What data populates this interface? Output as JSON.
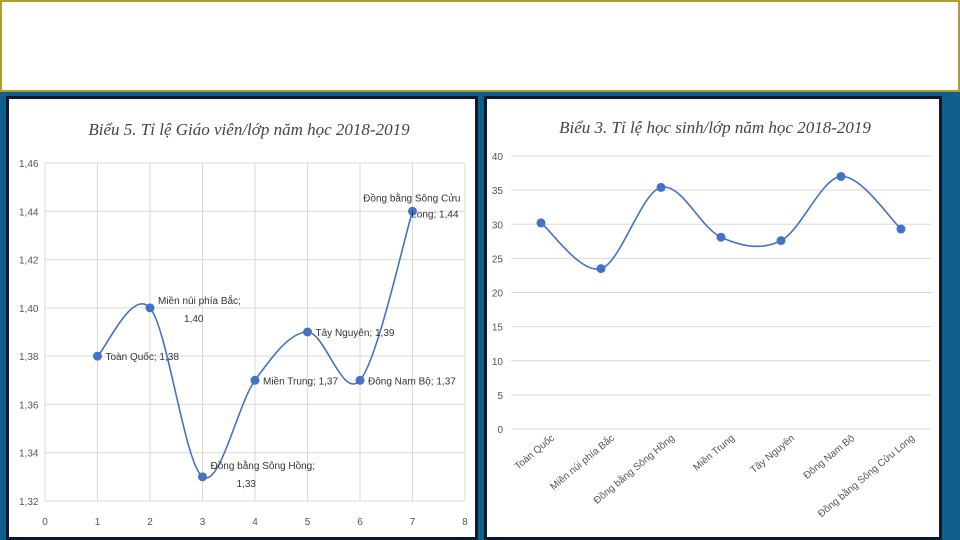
{
  "colors": {
    "accent": "#4472c4",
    "background": "#0f5f8c",
    "header_border": "#b59a2e"
  },
  "header": {
    "title": ""
  },
  "chart_data": [
    {
      "type": "line",
      "title": "Biểu 5. Tỉ lệ Giáo viên/lớp năm học 2018-2019",
      "x": [
        1,
        2,
        3,
        4,
        5,
        6,
        7
      ],
      "values": [
        1.38,
        1.4,
        1.33,
        1.37,
        1.39,
        1.37,
        1.44
      ],
      "labels": [
        "Toàn Quốc; 1,38",
        "Miền núi phía Bắc; 1,40",
        "Đồng bằng Sông Hồng; 1,33",
        "Miền Trung; 1,37",
        "Tây Nguyên; 1,39",
        "Đông Nam Bộ; 1,37",
        "Đồng bằng Sông Cửu Long; 1,44"
      ],
      "xlim": [
        0,
        8
      ],
      "ylim": [
        1.32,
        1.46
      ],
      "xticks": [
        "0",
        "1",
        "2",
        "3",
        "4",
        "5",
        "6",
        "7",
        "8"
      ],
      "yticks": [
        "1,32",
        "1,34",
        "1,36",
        "1,38",
        "1,40",
        "1,42",
        "1,44",
        "1,46"
      ],
      "grid": true
    },
    {
      "type": "line",
      "title": "Biểu 3. Tỉ lệ học sinh/lớp năm học 2018-2019",
      "categories": [
        "Toàn Quốc",
        "Miền núi phía Bắc",
        "Đồng bằng Sông Hồng",
        "Miền Trung",
        "Tây Nguyên",
        "Đông Nam Bộ",
        "Đồng bằng Sông Cửu Long"
      ],
      "values": [
        30.2,
        23.5,
        35.4,
        28.1,
        27.6,
        37.0,
        29.3
      ],
      "ylim": [
        0,
        40
      ],
      "yticks": [
        "0",
        "5",
        "10",
        "15",
        "20",
        "25",
        "30",
        "35",
        "40"
      ],
      "grid": true
    }
  ]
}
